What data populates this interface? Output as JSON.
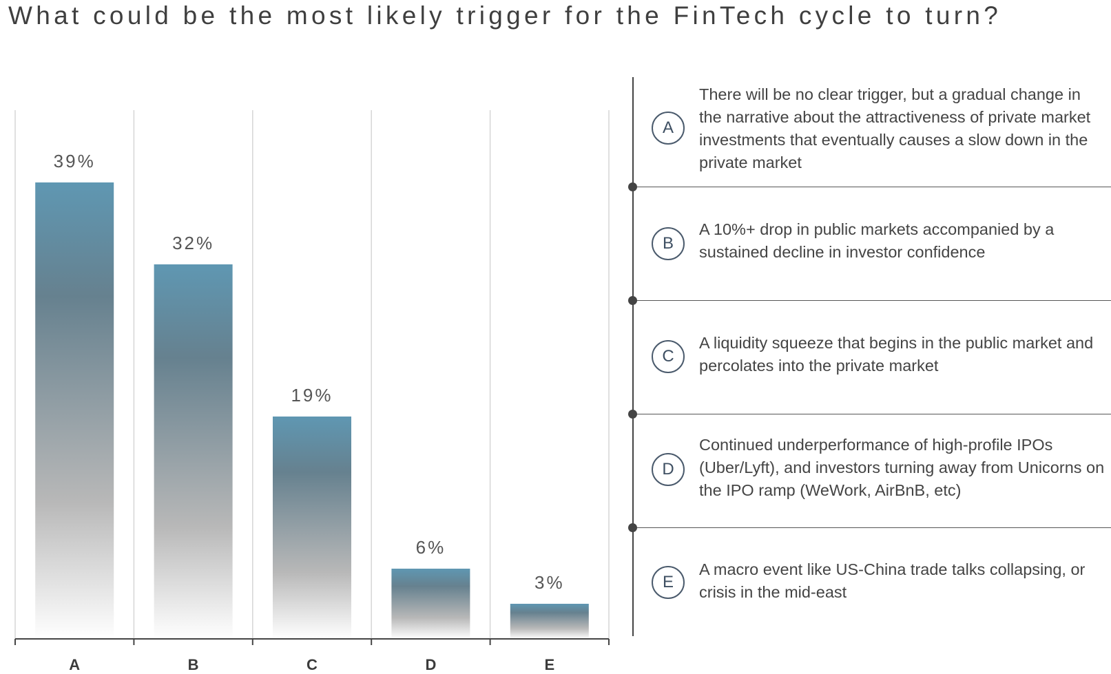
{
  "title": "What could be the most likely trigger for the FinTech cycle to turn?",
  "chart_data": {
    "type": "bar",
    "categories": [
      "A",
      "B",
      "C",
      "D",
      "E"
    ],
    "values": [
      39,
      32,
      19,
      6,
      3
    ],
    "value_labels": [
      "39%",
      "32%",
      "19%",
      "6%",
      "3%"
    ],
    "ylim": [
      0,
      42
    ],
    "grid": true,
    "bar_gradient": [
      "#5f97b2",
      "#66818f",
      "#b8b8b8",
      "#ffffff"
    ]
  },
  "options": [
    {
      "letter": "A",
      "text": "There will be no clear trigger, but a gradual change in the narrative about the attractiveness of private market investments that eventually causes a slow down in the private market"
    },
    {
      "letter": "B",
      "text": "A 10%+ drop in public markets accompanied by a sustained decline in investor confidence"
    },
    {
      "letter": "C",
      "text": "A liquidity squeeze that begins in the public market and percolates into the private market"
    },
    {
      "letter": "D",
      "text": "Continued underperformance of high-profile IPOs (Uber/Lyft), and investors turning away from Unicorns on the IPO ramp (WeWork, AirBnB, etc)"
    },
    {
      "letter": "E",
      "text": "A macro event like US-China trade talks collapsing, or crisis in the mid-east"
    }
  ]
}
